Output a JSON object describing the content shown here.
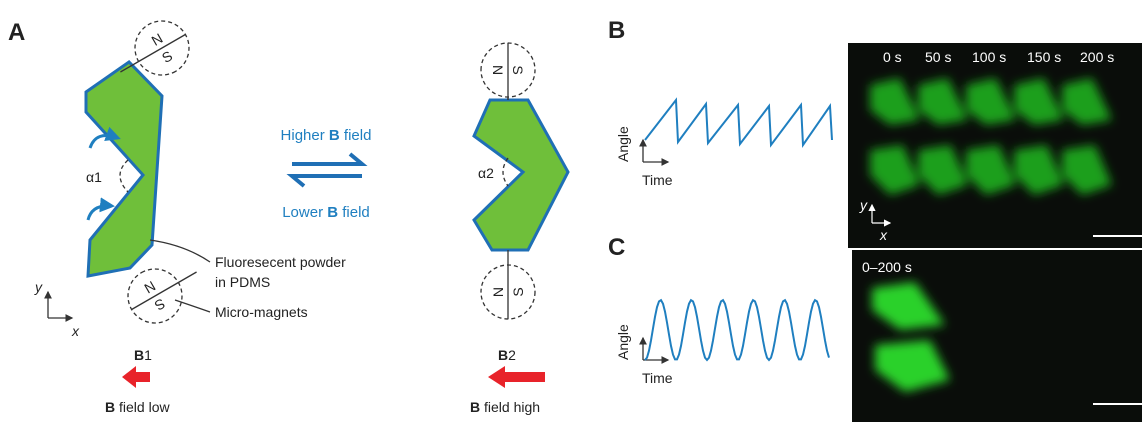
{
  "panel_labels": {
    "a": "A",
    "b": "B",
    "c": "C"
  },
  "panel_a": {
    "alpha1": "α1",
    "alpha2": "α2",
    "magnets": [
      {
        "n": "N",
        "s": "S"
      },
      {
        "n": "N",
        "s": "S"
      },
      {
        "n": "N",
        "s": "S"
      },
      {
        "n": "N",
        "s": "S"
      }
    ],
    "higher_field": {
      "pre": "Higher ",
      "bold": "B",
      "post": " field"
    },
    "lower_field": {
      "pre": "Lower ",
      "bold": "B",
      "post": " field"
    },
    "powder": [
      "Fluoresecent powder",
      "in PDMS"
    ],
    "micro_magnets": "Micro-magnets",
    "axis": {
      "y": "y",
      "x": "x"
    },
    "b1": {
      "bold": "B",
      "post": "1"
    },
    "b1_caption": {
      "bold": "B",
      "post": " field low"
    },
    "b2": {
      "bold": "B",
      "post": "2"
    },
    "b2_caption": {
      "bold": "B",
      "post": " field high"
    }
  },
  "panel_b": {
    "y_label": "Angle",
    "x_label": "Time",
    "timestamps": [
      "0 s",
      "50 s",
      "100 s",
      "150 s",
      "200 s"
    ],
    "image_axis": {
      "y": "y",
      "x": "x"
    }
  },
  "panel_c": {
    "y_label": "Angle",
    "x_label": "Time",
    "timestamp": "0–200 s"
  }
}
